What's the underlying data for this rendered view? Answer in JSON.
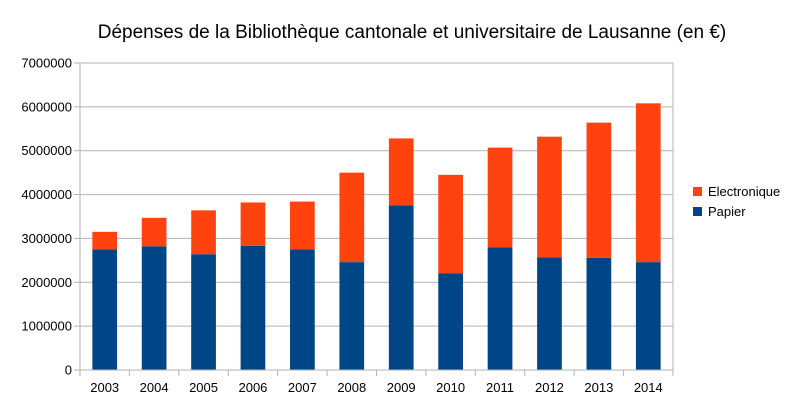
{
  "chart_data": {
    "type": "bar",
    "stacked": true,
    "title": "Dépenses de la Bibliothèque cantonale et universitaire de Lausanne (en €)",
    "xlabel": "",
    "ylabel": "",
    "ylim": [
      0,
      7000000
    ],
    "y_ticks": [
      0,
      1000000,
      2000000,
      3000000,
      4000000,
      5000000,
      6000000,
      7000000
    ],
    "grid": true,
    "legend_position": "right",
    "categories": [
      "2003",
      "2004",
      "2005",
      "2006",
      "2007",
      "2008",
      "2009",
      "2010",
      "2011",
      "2012",
      "2013",
      "2014"
    ],
    "series": [
      {
        "name": "Papier",
        "color": "#004586",
        "values": [
          2750000,
          2820000,
          2640000,
          2830000,
          2750000,
          2460000,
          3750000,
          2200000,
          2800000,
          2570000,
          2560000,
          2460000
        ]
      },
      {
        "name": "Electronique",
        "color": "#ff420e",
        "values": [
          400000,
          650000,
          1000000,
          990000,
          1090000,
          2040000,
          1530000,
          2250000,
          2270000,
          2750000,
          3080000,
          3620000
        ]
      }
    ],
    "legend_order": [
      "Electronique",
      "Papier"
    ]
  }
}
